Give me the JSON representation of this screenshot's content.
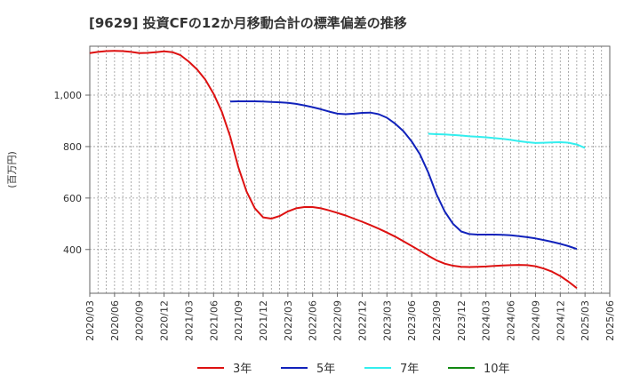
{
  "chart_data": {
    "type": "line",
    "title": "[9629]  投資CFの12か月移動合計の標準偏差の推移",
    "ylabel": "(百万円)",
    "xlabel": "",
    "ylim": [
      230,
      1190
    ],
    "yticks": [
      400,
      600,
      800,
      "1,000"
    ],
    "ytick_values": [
      400,
      600,
      800,
      1000
    ],
    "x_range": [
      "2020-03",
      "2025-06"
    ],
    "x_ticks": [
      "2020/03",
      "2020/06",
      "2020/09",
      "2020/12",
      "2021/03",
      "2021/06",
      "2021/09",
      "2021/12",
      "2022/03",
      "2022/06",
      "2022/09",
      "2022/12",
      "2023/03",
      "2023/06",
      "2023/09",
      "2023/12",
      "2024/03",
      "2024/06",
      "2024/09",
      "2024/12",
      "2025/03",
      "2025/06"
    ],
    "grid": true,
    "legend_position": "bottom",
    "series": [
      {
        "name": "3年",
        "color": "#dd1111",
        "points": [
          [
            "2020-03",
            1163
          ],
          [
            "2020-04",
            1168
          ],
          [
            "2020-05",
            1171
          ],
          [
            "2020-06",
            1172
          ],
          [
            "2020-07",
            1171
          ],
          [
            "2020-08",
            1168
          ],
          [
            "2020-09",
            1163
          ],
          [
            "2020-10",
            1164
          ],
          [
            "2020-11",
            1167
          ],
          [
            "2020-12",
            1170
          ],
          [
            "2021-01",
            1167
          ],
          [
            "2021-02",
            1155
          ],
          [
            "2021-03",
            1130
          ],
          [
            "2021-04",
            1100
          ],
          [
            "2021-05",
            1060
          ],
          [
            "2021-06",
            1005
          ],
          [
            "2021-07",
            935
          ],
          [
            "2021-08",
            840
          ],
          [
            "2021-09",
            720
          ],
          [
            "2021-10",
            625
          ],
          [
            "2021-11",
            560
          ],
          [
            "2021-12",
            525
          ],
          [
            "2022-01",
            520
          ],
          [
            "2022-02",
            530
          ],
          [
            "2022-03",
            548
          ],
          [
            "2022-04",
            560
          ],
          [
            "2022-05",
            565
          ],
          [
            "2022-06",
            565
          ],
          [
            "2022-07",
            560
          ],
          [
            "2022-08",
            552
          ],
          [
            "2022-09",
            542
          ],
          [
            "2022-10",
            532
          ],
          [
            "2022-11",
            520
          ],
          [
            "2022-12",
            508
          ],
          [
            "2023-01",
            495
          ],
          [
            "2023-02",
            481
          ],
          [
            "2023-03",
            466
          ],
          [
            "2023-04",
            450
          ],
          [
            "2023-05",
            432
          ],
          [
            "2023-06",
            414
          ],
          [
            "2023-07",
            395
          ],
          [
            "2023-08",
            376
          ],
          [
            "2023-09",
            358
          ],
          [
            "2023-10",
            345
          ],
          [
            "2023-11",
            337
          ],
          [
            "2023-12",
            333
          ],
          [
            "2024-01",
            332
          ],
          [
            "2024-02",
            333
          ],
          [
            "2024-03",
            334
          ],
          [
            "2024-04",
            336
          ],
          [
            "2024-05",
            338
          ],
          [
            "2024-06",
            339
          ],
          [
            "2024-07",
            340
          ],
          [
            "2024-08",
            339
          ],
          [
            "2024-09",
            335
          ],
          [
            "2024-10",
            326
          ],
          [
            "2024-11",
            314
          ],
          [
            "2024-12",
            297
          ],
          [
            "2025-01",
            275
          ],
          [
            "2025-02",
            250
          ]
        ]
      },
      {
        "name": "5年",
        "color": "#1122bb",
        "points": [
          [
            "2021-08",
            975
          ],
          [
            "2021-09",
            976
          ],
          [
            "2021-10",
            976
          ],
          [
            "2021-11",
            976
          ],
          [
            "2021-12",
            975
          ],
          [
            "2022-01",
            973
          ],
          [
            "2022-02",
            972
          ],
          [
            "2022-03",
            970
          ],
          [
            "2022-04",
            966
          ],
          [
            "2022-05",
            960
          ],
          [
            "2022-06",
            953
          ],
          [
            "2022-07",
            945
          ],
          [
            "2022-08",
            936
          ],
          [
            "2022-09",
            928
          ],
          [
            "2022-10",
            926
          ],
          [
            "2022-11",
            928
          ],
          [
            "2022-12",
            931
          ],
          [
            "2023-01",
            932
          ],
          [
            "2023-02",
            926
          ],
          [
            "2023-03",
            912
          ],
          [
            "2023-04",
            889
          ],
          [
            "2023-05",
            860
          ],
          [
            "2023-06",
            820
          ],
          [
            "2023-07",
            770
          ],
          [
            "2023-08",
            700
          ],
          [
            "2023-09",
            615
          ],
          [
            "2023-10",
            548
          ],
          [
            "2023-11",
            500
          ],
          [
            "2023-12",
            470
          ],
          [
            "2024-01",
            460
          ],
          [
            "2024-02",
            458
          ],
          [
            "2024-03",
            458
          ],
          [
            "2024-04",
            458
          ],
          [
            "2024-05",
            457
          ],
          [
            "2024-06",
            455
          ],
          [
            "2024-07",
            452
          ],
          [
            "2024-08",
            448
          ],
          [
            "2024-09",
            443
          ],
          [
            "2024-10",
            437
          ],
          [
            "2024-11",
            430
          ],
          [
            "2024-12",
            422
          ],
          [
            "2025-01",
            413
          ],
          [
            "2025-02",
            402
          ]
        ]
      },
      {
        "name": "7年",
        "color": "#33eeee",
        "points": [
          [
            "2023-08",
            850
          ],
          [
            "2023-09",
            848
          ],
          [
            "2023-10",
            847
          ],
          [
            "2023-11",
            845
          ],
          [
            "2023-12",
            843
          ],
          [
            "2024-01",
            840
          ],
          [
            "2024-02",
            838
          ],
          [
            "2024-03",
            836
          ],
          [
            "2024-04",
            833
          ],
          [
            "2024-05",
            830
          ],
          [
            "2024-06",
            826
          ],
          [
            "2024-07",
            821
          ],
          [
            "2024-08",
            817
          ],
          [
            "2024-09",
            814
          ],
          [
            "2024-10",
            815
          ],
          [
            "2024-11",
            816
          ],
          [
            "2024-12",
            817
          ],
          [
            "2025-01",
            815
          ],
          [
            "2025-02",
            808
          ],
          [
            "2025-03",
            795
          ]
        ]
      },
      {
        "name": "10年",
        "color": "#118811",
        "points": []
      }
    ]
  }
}
